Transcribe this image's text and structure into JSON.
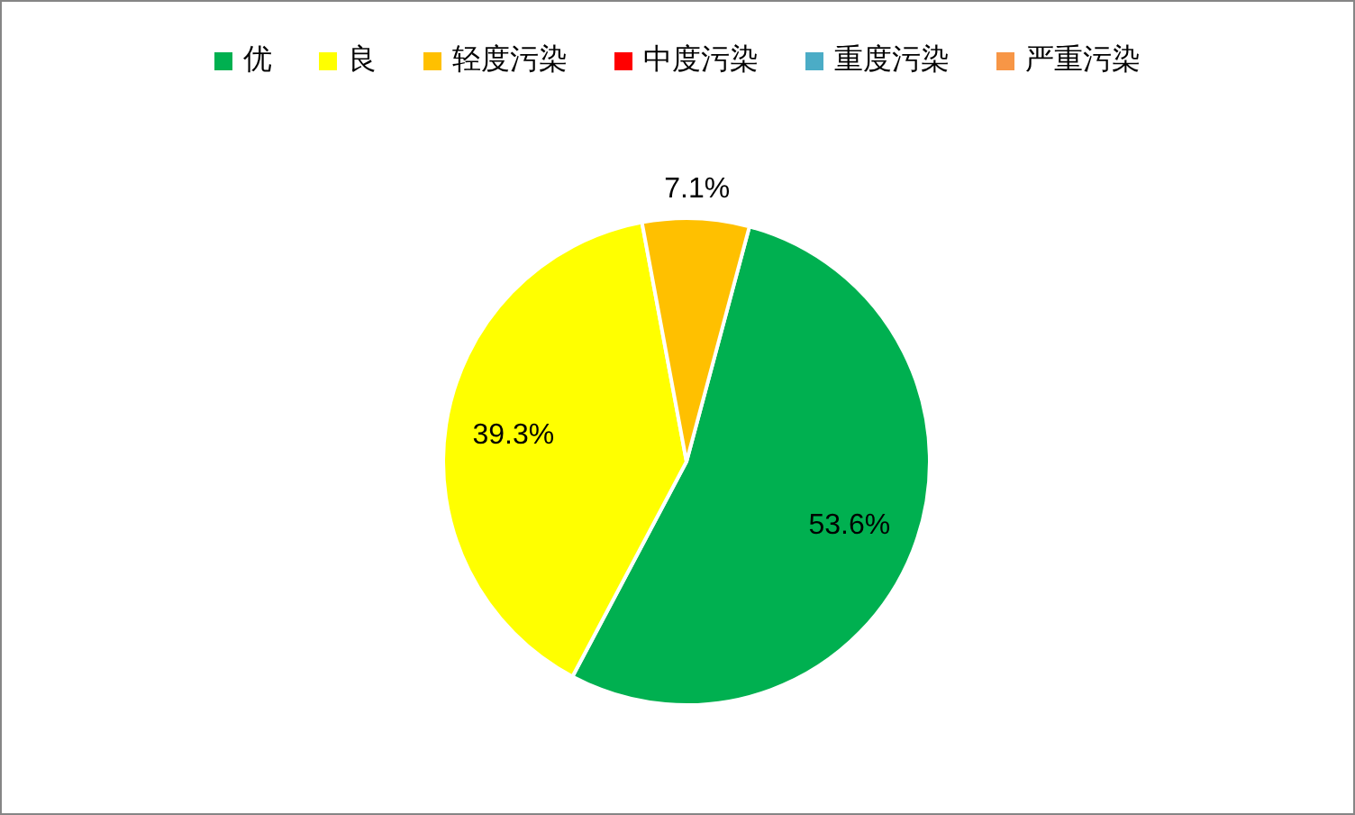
{
  "chart_data": {
    "type": "pie",
    "categories": [
      "优",
      "良",
      "轻度污染",
      "中度污染",
      "重度污染",
      "严重污染"
    ],
    "values": [
      53.6,
      39.3,
      7.1,
      0,
      0,
      0
    ],
    "value_labels": [
      "53.6%",
      "39.3%",
      "7.1%",
      null,
      null,
      null
    ],
    "colors": [
      "#00b050",
      "#ffff00",
      "#ffc000",
      "#ff0000",
      "#4bacc6",
      "#f79646"
    ],
    "legend": "top"
  }
}
